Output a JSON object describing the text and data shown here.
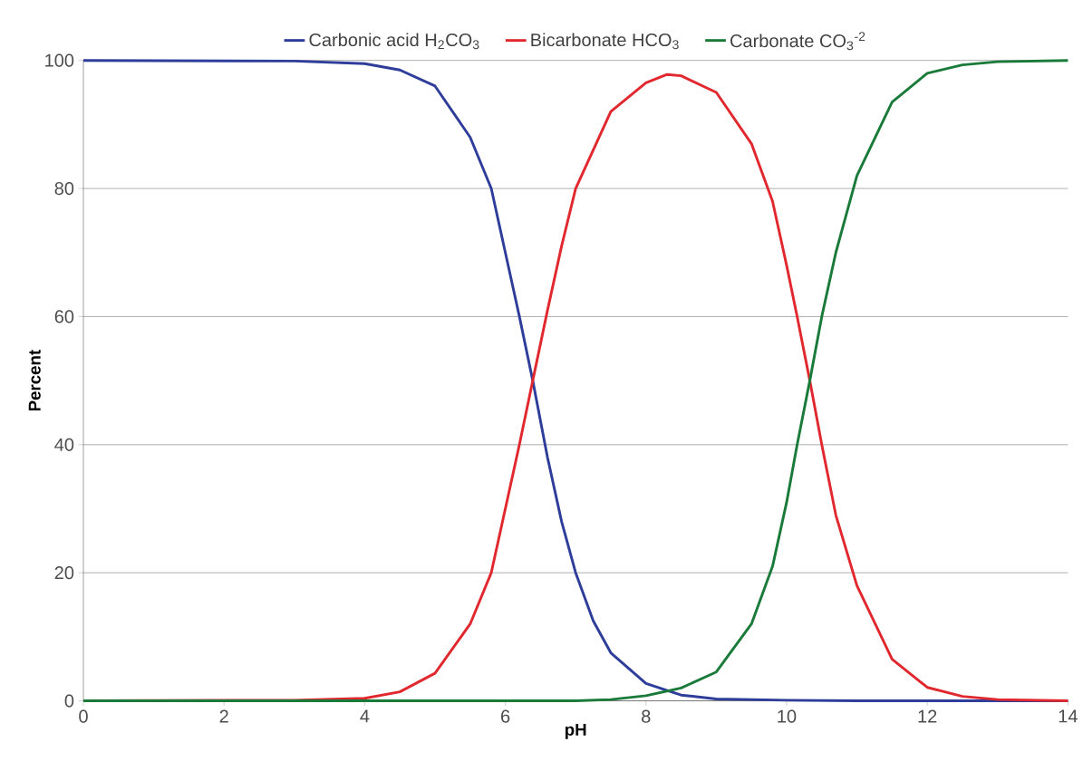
{
  "chart_data": {
    "type": "line",
    "xlabel": "pH",
    "ylabel": "Percent",
    "xlim": [
      0,
      14
    ],
    "ylim": [
      0,
      100
    ],
    "xticks": [
      0,
      2,
      4,
      6,
      8,
      10,
      12,
      14
    ],
    "yticks": [
      0,
      20,
      40,
      60,
      80,
      100
    ],
    "grid": "y",
    "legend": "top",
    "marker": "none",
    "line_style": "solid",
    "series": [
      {
        "name": "Carbonic acid H$_{2}$CO$_{3}$",
        "color": "#2e3d9a",
        "x": [
          0,
          3,
          4,
          4.5,
          5,
          5.5,
          5.8,
          6,
          6.2,
          6.39,
          6.6,
          6.8,
          7,
          7.25,
          7.5,
          8,
          8.5,
          9,
          10,
          11,
          14
        ],
        "values": [
          100,
          99.9,
          99.5,
          98.5,
          96,
          88,
          80,
          70,
          60,
          50,
          38,
          28,
          20,
          12.5,
          7.5,
          2.7,
          0.9,
          0.3,
          0.1,
          0,
          0
        ]
      },
      {
        "name": "Bicarbonate HCO$_{3}$",
        "color": "#e0282e",
        "x": [
          0,
          3,
          4,
          4.5,
          5,
          5.5,
          5.8,
          6,
          6.2,
          6.39,
          6.6,
          6.8,
          7,
          7.5,
          8,
          8.3,
          8.5,
          9,
          9.5,
          9.8,
          10,
          10.15,
          10.33,
          10.5,
          10.7,
          11,
          11.5,
          12,
          12.5,
          13,
          14
        ],
        "values": [
          0,
          0.1,
          0.4,
          1.4,
          4.3,
          12,
          20,
          30,
          40,
          50,
          61,
          71,
          80,
          92,
          96.5,
          97.8,
          97.6,
          95,
          87,
          78,
          68,
          60,
          50,
          40,
          29,
          18,
          6.5,
          2.1,
          0.7,
          0.2,
          0
        ]
      },
      {
        "name": "Carbonate CO$_{3}$$^{-2}$",
        "color": "#1a7a3a",
        "x": [
          0,
          7,
          7.5,
          8,
          8.5,
          9,
          9.5,
          9.8,
          10,
          10.15,
          10.33,
          10.5,
          10.7,
          11,
          11.5,
          12,
          12.5,
          13,
          14
        ],
        "values": [
          0,
          0,
          0.2,
          0.8,
          2,
          4.5,
          12,
          21,
          31,
          40,
          50,
          60,
          70,
          82,
          93.5,
          98,
          99.3,
          99.8,
          100
        ]
      }
    ]
  }
}
